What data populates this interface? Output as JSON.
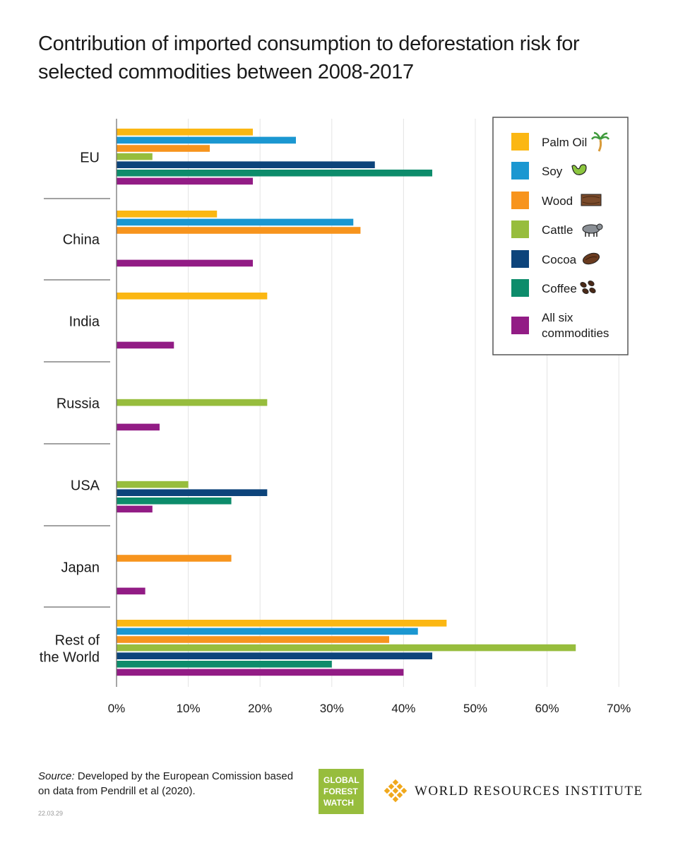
{
  "chart_data": {
    "type": "bar",
    "orientation": "horizontal",
    "title": "Contribution of imported consumption to deforestation risk for selected commodities between 2008-2017",
    "categories": [
      "EU",
      "China",
      "India",
      "Russia",
      "USA",
      "Japan",
      "Rest of the World"
    ],
    "category_lines": [
      [
        "EU"
      ],
      [
        "China"
      ],
      [
        "India"
      ],
      [
        "Russia"
      ],
      [
        "USA"
      ],
      [
        "Japan"
      ],
      [
        "Rest of",
        "the World"
      ]
    ],
    "series": [
      {
        "name": "Palm Oil",
        "color": "#fbb713",
        "icon": "palm-tree-icon",
        "values": [
          19,
          14,
          21,
          null,
          null,
          null,
          46
        ]
      },
      {
        "name": "Soy",
        "color": "#1b97d1",
        "icon": "soybean-icon",
        "values": [
          25,
          33,
          null,
          null,
          null,
          null,
          42
        ]
      },
      {
        "name": "Wood",
        "color": "#f7941d",
        "icon": "wood-icon",
        "values": [
          13,
          34,
          null,
          null,
          null,
          16,
          38
        ]
      },
      {
        "name": "Cattle",
        "color": "#97bd3d",
        "icon": "cattle-icon",
        "values": [
          5,
          null,
          null,
          21,
          10,
          null,
          64
        ]
      },
      {
        "name": "Cocoa",
        "color": "#0d447b",
        "icon": "cocoa-bean-icon",
        "values": [
          36,
          null,
          null,
          null,
          21,
          null,
          44
        ]
      },
      {
        "name": "Coffee",
        "color": "#0d8c6b",
        "icon": "coffee-beans-icon",
        "values": [
          44,
          null,
          null,
          null,
          16,
          null,
          30
        ]
      },
      {
        "name": "All six commodities",
        "color": "#921c85",
        "icon": "",
        "values": [
          19,
          19,
          8,
          6,
          5,
          4,
          40
        ]
      }
    ],
    "legend_lines": [
      [
        "Palm Oil"
      ],
      [
        "Soy"
      ],
      [
        "Wood"
      ],
      [
        "Cattle"
      ],
      [
        "Cocoa"
      ],
      [
        "Coffee"
      ],
      [
        "All six",
        "commodities"
      ]
    ],
    "xlim": [
      0,
      70
    ],
    "xticks": [
      0,
      10,
      20,
      30,
      40,
      50,
      60,
      70
    ],
    "xtick_labels": [
      "0%",
      "10%",
      "20%",
      "30%",
      "40%",
      "50%",
      "60%",
      "70%"
    ],
    "grid": "vertical",
    "legend": "top-right"
  },
  "footer": {
    "source_label": "Source:",
    "source_text": " Developed by the European Comission based on data from Pendrill et al (2020).",
    "date_code": "22.03.29",
    "gfw_logo_lines": [
      "GLOBAL",
      "FOREST",
      "WATCH"
    ],
    "wri_name": "WORLD RESOURCES INSTITUTE"
  }
}
